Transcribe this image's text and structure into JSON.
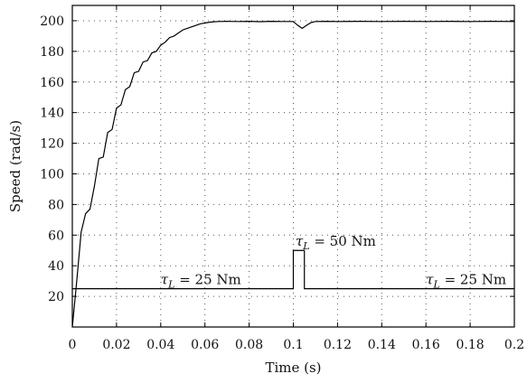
{
  "chart_data": {
    "type": "line",
    "xlabel": "Time (s)",
    "ylabel": "Speed (rad/s)",
    "xlim": [
      0,
      0.2
    ],
    "ylim": [
      0,
      210
    ],
    "grid": true,
    "x_ticks": [
      0,
      0.02,
      0.04,
      0.06,
      0.08,
      0.1,
      0.12,
      0.14,
      0.16,
      0.18,
      0.2
    ],
    "y_ticks": [
      20,
      40,
      60,
      80,
      100,
      120,
      140,
      160,
      180,
      200
    ],
    "x_tick_labels": [
      "0",
      "0.02",
      "0.04",
      "0.06",
      "0.08",
      "0.1",
      "0.12",
      "0.14",
      "0.16",
      "0.18",
      "0.2"
    ],
    "y_tick_labels": [
      "20",
      "40",
      "60",
      "80",
      "100",
      "120",
      "140",
      "160",
      "180",
      "200"
    ],
    "series": [
      {
        "x": [
          0,
          0.002,
          0.004,
          0.006,
          0.008,
          0.01,
          0.012,
          0.014,
          0.016,
          0.018,
          0.02,
          0.022,
          0.024,
          0.026,
          0.028,
          0.03,
          0.032,
          0.034,
          0.036,
          0.038,
          0.04,
          0.042,
          0.044,
          0.046,
          0.048,
          0.05,
          0.052,
          0.054,
          0.056,
          0.058,
          0.06,
          0.062,
          0.064,
          0.066,
          0.07,
          0.075,
          0.08,
          0.085,
          0.09,
          0.095,
          0.1,
          0.102,
          0.104,
          0.106,
          0.108,
          0.11,
          0.115,
          0.12,
          0.13,
          0.14,
          0.15,
          0.16,
          0.17,
          0.18,
          0.19,
          0.2
        ],
        "values": [
          0,
          30,
          62,
          74,
          77,
          92,
          110,
          111,
          127,
          129,
          143,
          145,
          155,
          157,
          166,
          167,
          173,
          174,
          179,
          180,
          184,
          186,
          189,
          190,
          192,
          194,
          195,
          196,
          197,
          198,
          198.5,
          199,
          199.3,
          199.5,
          199.6,
          199.5,
          199.6,
          199.4,
          199.6,
          199.5,
          199.5,
          197,
          195,
          197,
          198.8,
          199.5,
          199.6,
          199.5,
          199.6,
          199.5,
          199.6,
          199.5,
          199.6,
          199.5,
          199.6,
          199.5
        ]
      },
      {
        "x": [
          0,
          0.1,
          0.1,
          0.105,
          0.105,
          0.2
        ],
        "values": [
          25,
          25,
          50,
          50,
          25,
          25
        ]
      }
    ],
    "annotations": [
      {
        "text": "τ_L = 25 Nm",
        "x": 0.04,
        "y": 28
      },
      {
        "text": "τ_L = 50 Nm",
        "x": 0.101,
        "y": 53
      },
      {
        "text": "τ_L = 25 Nm",
        "x": 0.16,
        "y": 28
      }
    ]
  }
}
